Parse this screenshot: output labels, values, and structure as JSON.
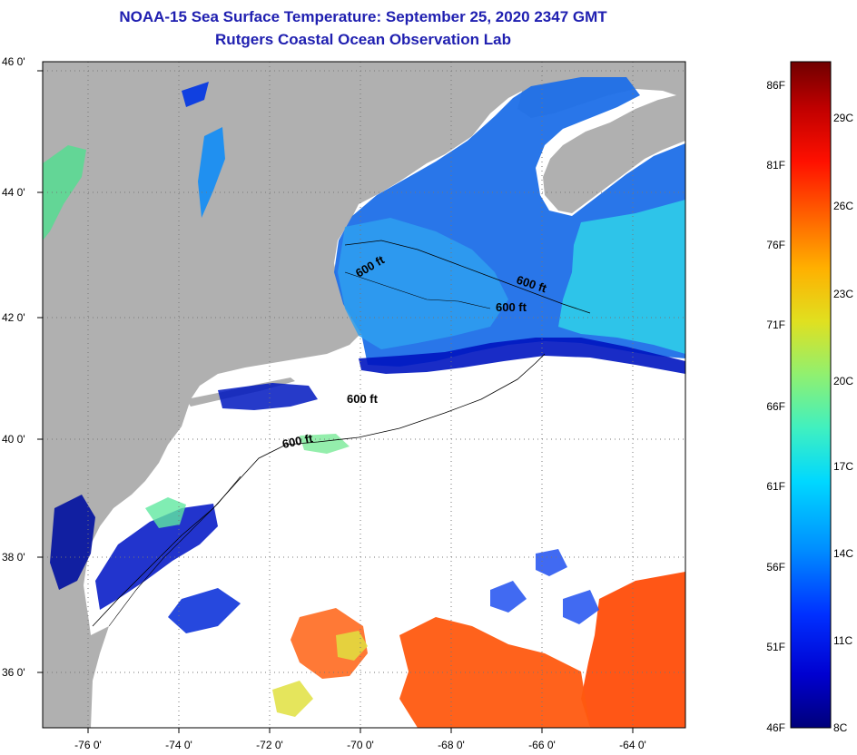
{
  "title_line1": "NOAA-15 Sea Surface Temperature:  September 25, 2020 2347 GMT",
  "title_line2": "Rutgers Coastal Ocean Observation Lab",
  "lat_labels": [
    "46 0'",
    "44 0'",
    "42 0'",
    "40 0'",
    "38 0'",
    "36 0'"
  ],
  "lon_labels": [
    "-76 0'",
    "-74 0'",
    "-72 0'",
    "-70 0'",
    "-68 0'",
    "-66 0'",
    "-64 0'"
  ],
  "contour_labels": [
    "600 ft",
    "600 ft",
    "600 ft",
    "600 ft",
    "600 ft"
  ],
  "colorbar": {
    "fahrenheit_labels": [
      "86F",
      "81F",
      "76F",
      "71F",
      "66F",
      "61F",
      "56F",
      "51F",
      "46F"
    ],
    "celsius_labels": [
      "29C",
      "26C",
      "23C",
      "20C",
      "17C",
      "14C",
      "11C",
      "8C"
    ],
    "stops": [
      "#00007a",
      "#0000d0",
      "#0030ff",
      "#0090ff",
      "#00d8ff",
      "#40f0c0",
      "#90f070",
      "#e0e020",
      "#ffb000",
      "#ff6000",
      "#ff1000",
      "#c00000",
      "#700000"
    ]
  },
  "colors": {
    "land": "#b0b0b0",
    "cloud": "#ffffff",
    "title": "#1f1fb0"
  }
}
